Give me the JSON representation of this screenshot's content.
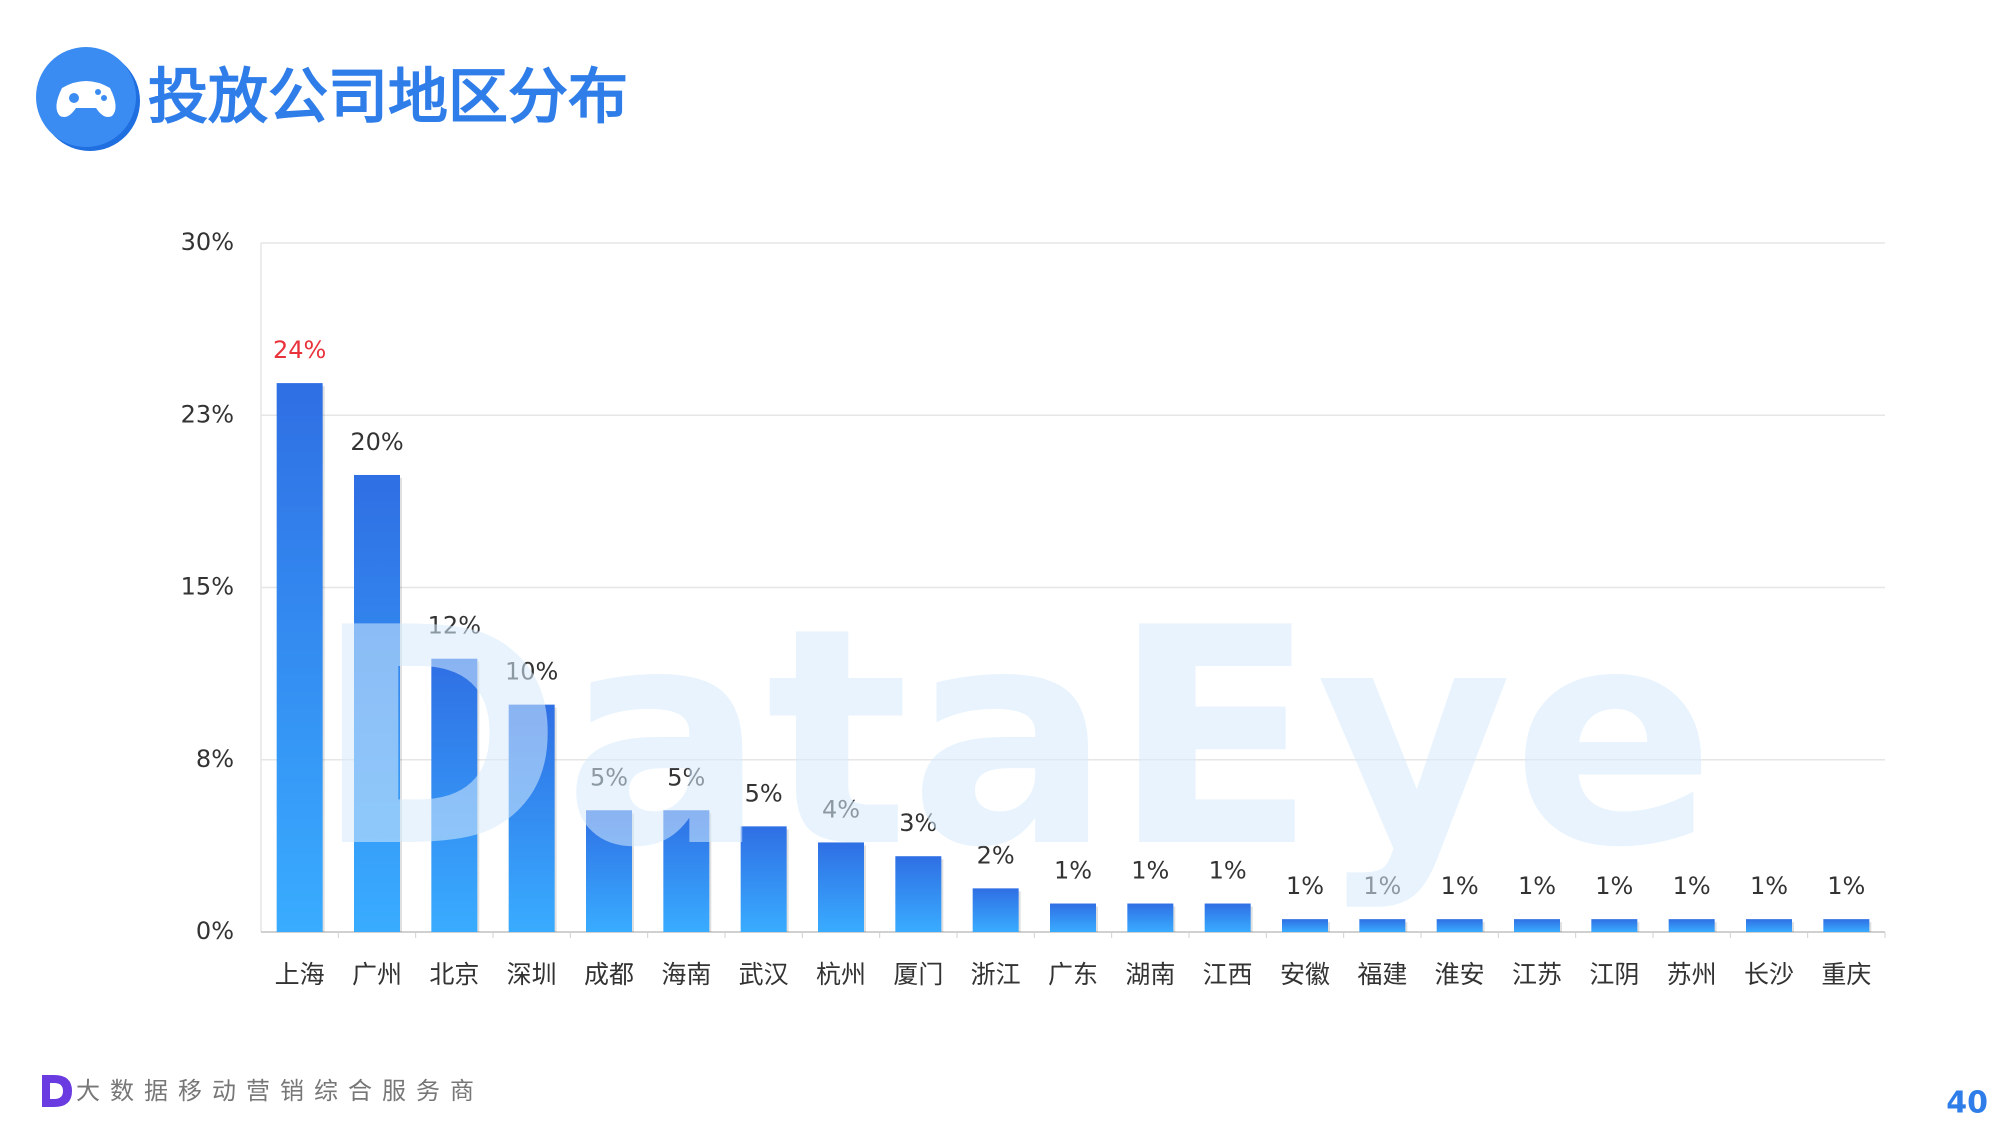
{
  "header": {
    "title": "投放公司地区分布"
  },
  "chart_data": {
    "type": "bar",
    "categories": [
      "上海",
      "广州",
      "北京",
      "深圳",
      "成都",
      "海南",
      "武汉",
      "杭州",
      "厦门",
      "浙江",
      "广东",
      "湖南",
      "江西",
      "安徽",
      "福建",
      "淮安",
      "江苏",
      "江阴",
      "苏州",
      "长沙",
      "重庆"
    ],
    "values": [
      23.9,
      19.9,
      11.9,
      9.9,
      5.3,
      5.3,
      4.6,
      3.9,
      3.3,
      1.9,
      1.24,
      1.24,
      1.24,
      0.56,
      0.56,
      0.56,
      0.56,
      0.56,
      0.56,
      0.56,
      0.56
    ],
    "value_labels": [
      "24%",
      "20%",
      "12%",
      "10%",
      "5%",
      "5%",
      "5%",
      "4%",
      "3%",
      "2%",
      "1%",
      "1%",
      "1%",
      "1%",
      "1%",
      "1%",
      "1%",
      "1%",
      "1%",
      "1%",
      "1%"
    ],
    "color": [
      "#2f6fe4",
      "#39acff"
    ],
    "value_label_color": "#333333",
    "highlight_label_color": "#e8333b",
    "ylim": [
      0,
      30
    ],
    "yticks": [
      {
        "value": 0,
        "label": "0%"
      },
      {
        "value": 7.5,
        "label": "8%"
      },
      {
        "value": 15,
        "label": "15%"
      },
      {
        "value": 22.5,
        "label": "23%"
      },
      {
        "value": 30,
        "label": "30%"
      }
    ],
    "grid": true
  },
  "watermark": "DataEye",
  "footer": {
    "slogan": "大数据移动营销综合服务商",
    "page": "40"
  }
}
